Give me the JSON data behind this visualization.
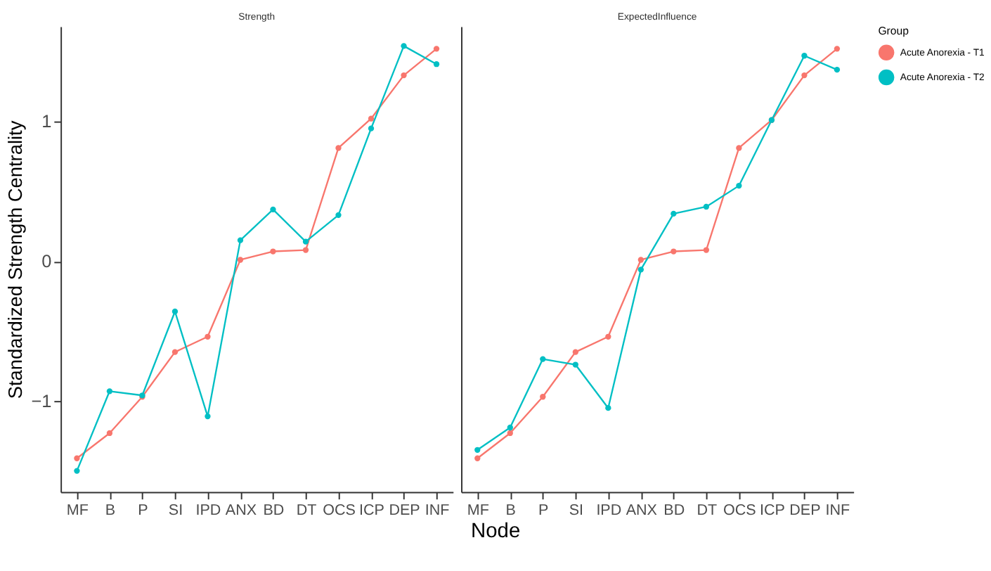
{
  "chart_data": [
    {
      "type": "line",
      "title": "Strength",
      "ylabel": "Standardized Strength Centrality",
      "xlabel": "Node",
      "legend": "right",
      "grid": false,
      "marker": "circle",
      "line_style": "solid",
      "categories": [
        "MF",
        "B",
        "P",
        "SI",
        "IPD",
        "ANX",
        "BD",
        "DT",
        "OCS",
        "ICP",
        "DEP",
        "INF"
      ],
      "ylim": [
        -1.65,
        1.68
      ],
      "yticks": [
        -1,
        0,
        1
      ],
      "series": [
        {
          "name": "Acute Anorexia - T1",
          "color": "#f8766d",
          "values": [
            -1.41,
            -1.23,
            -0.97,
            -0.65,
            -0.54,
            0.01,
            0.07,
            0.08,
            0.81,
            1.02,
            1.33,
            1.52
          ]
        },
        {
          "name": "Acute Anorexia - T2",
          "color": "#00bfc4",
          "values": [
            -1.5,
            -0.93,
            -0.96,
            -0.36,
            -1.11,
            0.15,
            0.37,
            0.14,
            0.33,
            0.95,
            1.54,
            1.41
          ]
        }
      ]
    },
    {
      "type": "line",
      "title": "ExpectedInfluence",
      "legend_title": "Group",
      "legend": "right",
      "grid": false,
      "marker": "circle",
      "line_style": "solid",
      "tick_labels": "x",
      "categories": [
        "MF",
        "B",
        "P",
        "SI",
        "IPD",
        "ANX",
        "BD",
        "DT",
        "OCS",
        "ICP",
        "DEP",
        "INF"
      ],
      "ylim": [
        -1.65,
        1.68
      ],
      "series": [
        {
          "name": "Acute Anorexia - T1",
          "color": "#f8766d",
          "values": [
            -1.41,
            -1.23,
            -0.97,
            -0.65,
            -0.54,
            0.01,
            0.07,
            0.08,
            0.81,
            1.01,
            1.33,
            1.52
          ]
        },
        {
          "name": "Acute Anorexia - T2",
          "color": "#00bfc4",
          "values": [
            -1.35,
            -1.19,
            -0.7,
            -0.74,
            -1.05,
            -0.06,
            0.34,
            0.39,
            0.54,
            1.01,
            1.47,
            1.37
          ]
        }
      ]
    }
  ]
}
